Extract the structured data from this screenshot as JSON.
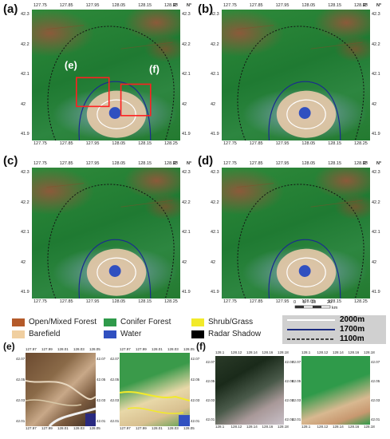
{
  "panels": {
    "a": "(a)",
    "b": "(b)",
    "c": "(c)",
    "d": "(d)",
    "e": "(e)",
    "f": "(f)"
  },
  "box_labels": {
    "e": "(e)",
    "f": "(f)"
  },
  "axes": {
    "x_ticks": [
      "127.75",
      "127.85",
      "127.95",
      "128.05",
      "128.15",
      "128.25"
    ],
    "y_ticks": [
      "42.3",
      "42.2",
      "42.1",
      "42",
      "41.9"
    ],
    "x_unit": "E°",
    "y_unit": "N°"
  },
  "legend": {
    "items": [
      {
        "label": "Open/Mixed Forest",
        "color": "#b45a2a"
      },
      {
        "label": "Conifer Forest",
        "color": "#2f9a4a"
      },
      {
        "label": "Shrub/Grass",
        "color": "#f2ea2a"
      },
      {
        "label": "Barefield",
        "color": "#f0cfa0"
      },
      {
        "label": "Water",
        "color": "#3050c0"
      },
      {
        "label": "Radar Shadow",
        "color": "#000000"
      }
    ],
    "contours": [
      {
        "label": "2000m",
        "style": "solid-white"
      },
      {
        "label": "1700m",
        "style": "solid-navy"
      },
      {
        "label": "1100m",
        "style": "dashed-black"
      }
    ],
    "scale_ticks": [
      "0",
      "5",
      "10",
      "20"
    ],
    "scale_unit": "km"
  },
  "inset_e": {
    "x_ticks": [
      "127.97",
      "127.99",
      "128.01",
      "128.03",
      "128.05"
    ],
    "y_ticks": [
      "42.07",
      "42.05",
      "42.03",
      "42.01"
    ]
  },
  "inset_f": {
    "x_ticks": [
      "128.1",
      "128.12",
      "128.14",
      "128.16",
      "128.18"
    ],
    "y_ticks": [
      "42.07",
      "42.05",
      "42.03",
      "42.01"
    ]
  },
  "colors": {
    "conifer": "#2f9a4a",
    "open_forest": "#b45a2a",
    "barefield": "#f0cfa0",
    "water": "#3050c0",
    "box_red": "#ff2020"
  }
}
